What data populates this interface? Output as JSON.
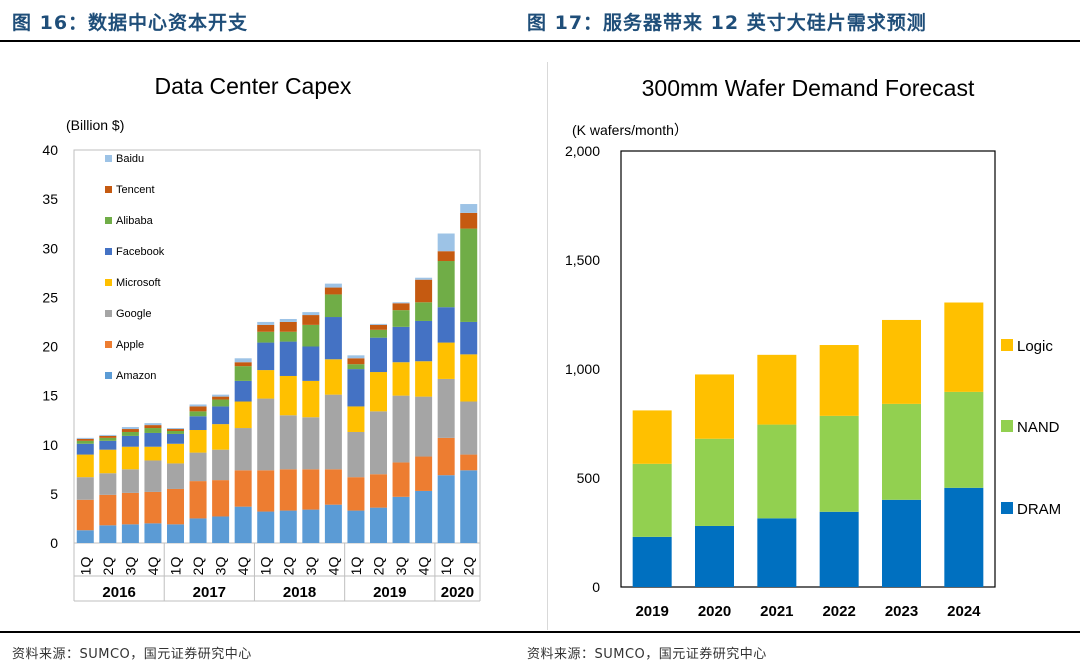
{
  "header": {
    "left_title": "图 16：数据中心资本开支",
    "right_title": "图 17：服务器带来 12 英寸大硅片需求预测"
  },
  "footer": {
    "left_source": "资料来源：SUMCO，国元证券研究中心",
    "right_source": "资料来源：SUMCO，国元证券研究中心"
  },
  "chart_data": [
    {
      "type": "bar",
      "stacked": true,
      "title": "Data Center Capex",
      "ylabel": "(Billion $)",
      "ylim": [
        0,
        40
      ],
      "yticks": [
        0,
        5,
        10,
        15,
        20,
        25,
        30,
        35,
        40
      ],
      "grid": false,
      "legend_position": "left-inside",
      "categories": [
        "1Q",
        "2Q",
        "3Q",
        "4Q",
        "1Q",
        "2Q",
        "3Q",
        "4Q",
        "1Q",
        "2Q",
        "3Q",
        "4Q",
        "1Q",
        "2Q",
        "3Q",
        "4Q",
        "1Q",
        "2Q"
      ],
      "groups": [
        {
          "label": "2016",
          "count": 4
        },
        {
          "label": "2017",
          "count": 4
        },
        {
          "label": "2018",
          "count": 4
        },
        {
          "label": "2019",
          "count": 4
        },
        {
          "label": "2020",
          "count": 2
        }
      ],
      "series": [
        {
          "name": "Amazon",
          "color": "#5b9bd5",
          "values": [
            1.3,
            1.8,
            1.9,
            2.0,
            1.9,
            2.5,
            2.7,
            3.7,
            3.2,
            3.3,
            3.4,
            3.9,
            3.3,
            3.6,
            4.7,
            5.3,
            6.9,
            7.4
          ]
        },
        {
          "name": "Apple",
          "color": "#ed7d31",
          "values": [
            3.1,
            3.1,
            3.2,
            3.2,
            3.6,
            3.8,
            3.7,
            3.7,
            4.2,
            4.2,
            4.1,
            3.6,
            3.4,
            3.4,
            3.5,
            3.5,
            3.8,
            1.6
          ]
        },
        {
          "name": "Google",
          "color": "#a5a5a5",
          "values": [
            2.3,
            2.2,
            2.4,
            3.2,
            2.6,
            2.9,
            3.1,
            4.3,
            7.3,
            5.5,
            5.3,
            7.6,
            4.6,
            6.4,
            6.8,
            6.1,
            6.0,
            5.4
          ]
        },
        {
          "name": "Microsoft",
          "color": "#ffc000",
          "values": [
            2.3,
            2.4,
            2.3,
            1.4,
            2.0,
            2.3,
            2.6,
            2.7,
            2.9,
            4.0,
            3.7,
            3.6,
            2.6,
            4.0,
            3.4,
            3.6,
            3.7,
            4.8
          ]
        },
        {
          "name": "Facebook",
          "color": "#4472c4",
          "values": [
            1.1,
            0.9,
            1.1,
            1.4,
            1.0,
            1.4,
            1.8,
            2.1,
            2.8,
            3.5,
            3.5,
            4.3,
            3.8,
            3.5,
            3.6,
            4.1,
            3.6,
            3.3
          ]
        },
        {
          "name": "Alibaba",
          "color": "#70ad47",
          "values": [
            0.3,
            0.3,
            0.4,
            0.5,
            0.3,
            0.5,
            0.7,
            1.5,
            1.1,
            1.0,
            2.2,
            2.3,
            0.5,
            0.8,
            1.7,
            1.9,
            4.7,
            9.5
          ]
        },
        {
          "name": "Tencent",
          "color": "#c55a11",
          "values": [
            0.2,
            0.2,
            0.3,
            0.3,
            0.2,
            0.5,
            0.3,
            0.4,
            0.7,
            1.0,
            1.0,
            0.7,
            0.6,
            0.5,
            0.7,
            2.3,
            1.0,
            1.6
          ]
        },
        {
          "name": "Baidu",
          "color": "#9dc3e6",
          "values": [
            0.1,
            0.1,
            0.2,
            0.2,
            0.1,
            0.2,
            0.2,
            0.4,
            0.3,
            0.3,
            0.3,
            0.4,
            0.3,
            0.1,
            0.1,
            0.2,
            1.8,
            0.9
          ]
        }
      ]
    },
    {
      "type": "bar",
      "stacked": true,
      "title": "300mm Wafer Demand Forecast",
      "ylabel": "(K wafers/month）",
      "ylim": [
        0,
        2000
      ],
      "yticks": [
        "0",
        "500",
        "1,000",
        "1,500",
        "2,000"
      ],
      "ytick_values": [
        0,
        500,
        1000,
        1500,
        2000
      ],
      "grid": false,
      "legend_position": "right",
      "categories": [
        "2019",
        "2020",
        "2021",
        "2022",
        "2023",
        "2024"
      ],
      "series": [
        {
          "name": "DRAM",
          "color": "#0070c0",
          "values": [
            230,
            280,
            315,
            345,
            400,
            455
          ]
        },
        {
          "name": "NAND",
          "color": "#92d050",
          "values": [
            335,
            400,
            430,
            440,
            440,
            440
          ]
        },
        {
          "name": "Logic",
          "color": "#ffc000",
          "values": [
            245,
            295,
            320,
            325,
            385,
            410
          ]
        }
      ]
    }
  ]
}
